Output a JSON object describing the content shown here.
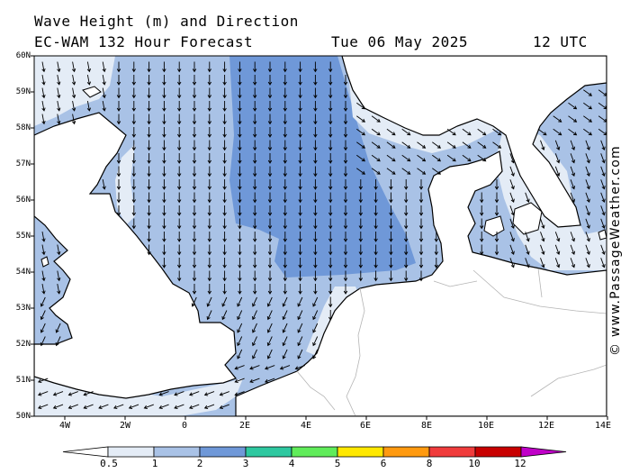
{
  "header": {
    "title_line1": "Wave Height (m) and Direction",
    "title_line2": "EC-WAM 132 Hour Forecast",
    "date": "Tue 06 May 2025",
    "time": "12 UTC"
  },
  "credit": "© www.PassageWeather.com",
  "axes": {
    "lat_labels": [
      "60N",
      "59N",
      "58N",
      "57N",
      "56N",
      "55N",
      "54N",
      "53N",
      "52N",
      "51N",
      "50N"
    ],
    "lon_labels": [
      "4W",
      "2W",
      "0",
      "2E",
      "4E",
      "6E",
      "8E",
      "10E",
      "12E",
      "14E"
    ]
  },
  "legend": {
    "labels": [
      "0.5",
      "1",
      "2",
      "3",
      "4",
      "5",
      "6",
      "8",
      "10",
      "12"
    ],
    "colors": [
      "#e4ecf6",
      "#a9c2e6",
      "#6f98d8",
      "#2ec8a0",
      "#60ec5a",
      "#ffe800",
      "#ff9a10",
      "#f03c3c",
      "#c80000",
      "#c000c8"
    ]
  },
  "colors": {
    "land": "#ffffff",
    "band_0_5_1": "#e4ecf6",
    "band_1_2": "#a9c2e6",
    "band_2_3": "#6f98d8",
    "coast": "#000000",
    "border": "#b4b4b4"
  }
}
